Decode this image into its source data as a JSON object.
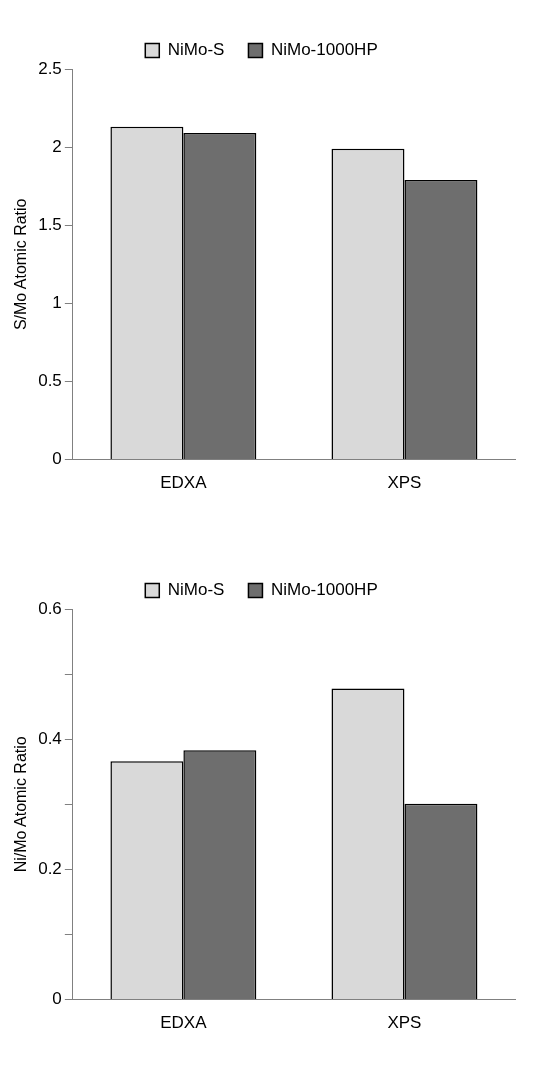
{
  "chart_data": [
    {
      "type": "bar",
      "ylabel": "S/Mo Atomic Ratio",
      "categories": [
        "EDXA",
        "XPS"
      ],
      "series": [
        {
          "name": "NiMo-S",
          "color": "#d9d9d9",
          "values": [
            2.13,
            1.99
          ]
        },
        {
          "name": "NiMo-1000HP",
          "color": "#6e6e6e",
          "values": [
            2.09,
            1.79
          ]
        }
      ],
      "ylim": [
        0,
        2.5
      ],
      "yticks": [
        0,
        0.5,
        1,
        1.5,
        2,
        2.5
      ],
      "grid": false,
      "legend": "top"
    },
    {
      "type": "bar",
      "ylabel": "Ni/Mo Atomic Ratio",
      "categories": [
        "EDXA",
        "XPS"
      ],
      "series": [
        {
          "name": "NiMo-S",
          "color": "#d9d9d9",
          "values": [
            0.366,
            0.478
          ]
        },
        {
          "name": "NiMo-1000HP",
          "color": "#6e6e6e",
          "values": [
            0.383,
            0.301
          ]
        }
      ],
      "ylim": [
        0,
        0.6
      ],
      "yticks": [
        0,
        {
          "value": 0.1,
          "label": null
        },
        0.2,
        {
          "value": 0.3,
          "label": null
        },
        0.4,
        {
          "value": 0.5,
          "label": null
        },
        0.6
      ],
      "grid": false,
      "legend": "top"
    }
  ]
}
